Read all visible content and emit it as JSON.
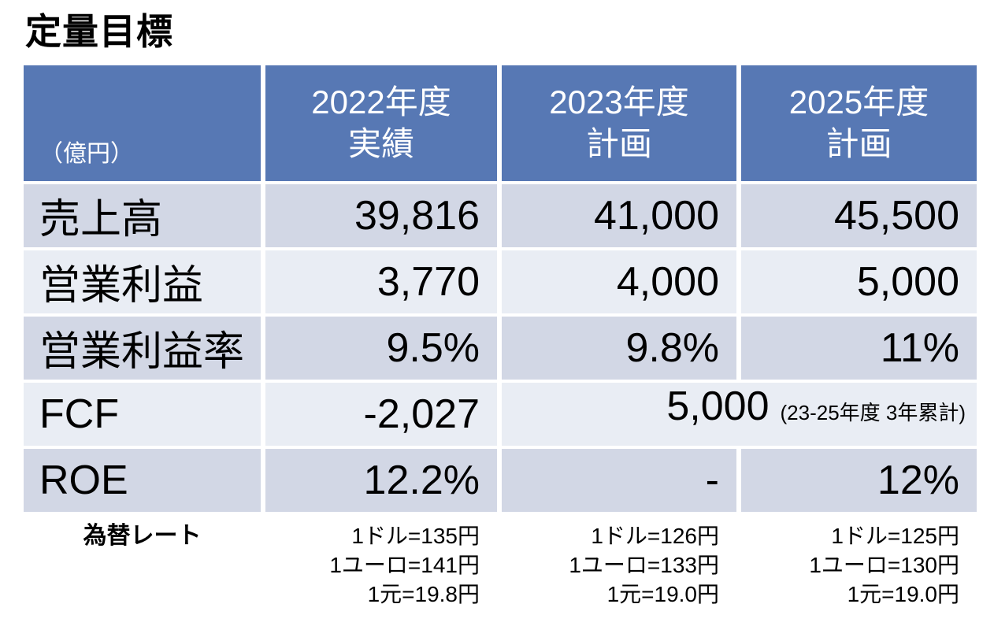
{
  "title": "定量目標",
  "colors": {
    "header_bg": "#5778B4",
    "header_text": "#FFFFFF",
    "band_dark": "#D2D7E5",
    "band_light": "#E9EDF4",
    "body_text": "#000000"
  },
  "table": {
    "unit_label": "（億円）",
    "headers": [
      {
        "line1": "2022年度",
        "line2": "実績"
      },
      {
        "line1": "2023年度",
        "line2": "計画"
      },
      {
        "line1": "2025年度",
        "line2": "計画"
      }
    ],
    "rows": [
      {
        "label": "売上高",
        "fy2022": "39,816",
        "fy2023": "41,000",
        "fy2025": "45,500"
      },
      {
        "label": "営業利益",
        "fy2022": "3,770",
        "fy2023": "4,000",
        "fy2025": "5,000"
      },
      {
        "label": "営業利益率",
        "fy2022": "9.5%",
        "fy2023": "9.8%",
        "fy2025": "11%"
      },
      {
        "label": "FCF",
        "fy2022": "-2,027",
        "merged_value": "5,000",
        "merged_note": "(23-25年度 3年累計)"
      },
      {
        "label": "ROE",
        "fy2022": "12.2%",
        "fy2023": "-",
        "fy2025": "12%"
      }
    ]
  },
  "footer": {
    "label": "為替レート",
    "fy2022": [
      "1ドル=135円",
      "1ユーロ=141円",
      "1元=19.8円"
    ],
    "fy2023": [
      "1ドル=126円",
      "1ユーロ=133円",
      "1元=19.0円"
    ],
    "fy2025": [
      "1ドル=125円",
      "1ユーロ=130円",
      "1元=19.0円"
    ]
  }
}
